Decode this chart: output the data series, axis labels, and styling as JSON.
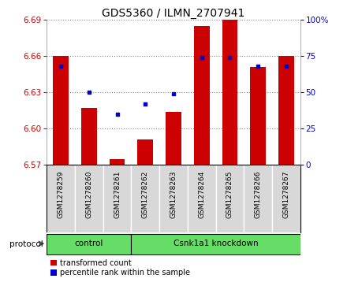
{
  "title": "GDS5360 / ILMN_2707941",
  "samples": [
    "GSM1278259",
    "GSM1278260",
    "GSM1278261",
    "GSM1278262",
    "GSM1278263",
    "GSM1278264",
    "GSM1278265",
    "GSM1278266",
    "GSM1278267"
  ],
  "transformed_count": [
    6.66,
    6.617,
    6.575,
    6.591,
    6.614,
    6.685,
    6.693,
    6.651,
    6.66
  ],
  "percentile_rank": [
    68,
    50,
    35,
    42,
    49,
    74,
    74,
    68,
    68
  ],
  "baseline": 6.57,
  "ylim_left": [
    6.57,
    6.69
  ],
  "ylim_right": [
    0,
    100
  ],
  "yticks_left": [
    6.57,
    6.6,
    6.63,
    6.66,
    6.69
  ],
  "yticks_right": [
    0,
    25,
    50,
    75,
    100
  ],
  "bar_color": "#cc0000",
  "dot_color": "#0000cc",
  "bar_width": 0.55,
  "control_count": 3,
  "protocol_groups": [
    {
      "label": "control",
      "start": 0,
      "end": 2
    },
    {
      "label": "Csnk1a1 knockdown",
      "start": 3,
      "end": 8
    }
  ],
  "protocol_label": "protocol",
  "legend_items": [
    {
      "label": "transformed count",
      "color": "#cc0000"
    },
    {
      "label": "percentile rank within the sample",
      "color": "#0000cc"
    }
  ],
  "tick_color_left": "#cc0000",
  "tick_color_right": "#0000cc",
  "sample_bg_color": "#d8d8d8",
  "group_bg_color": "#66dd66",
  "title_fontsize": 10
}
